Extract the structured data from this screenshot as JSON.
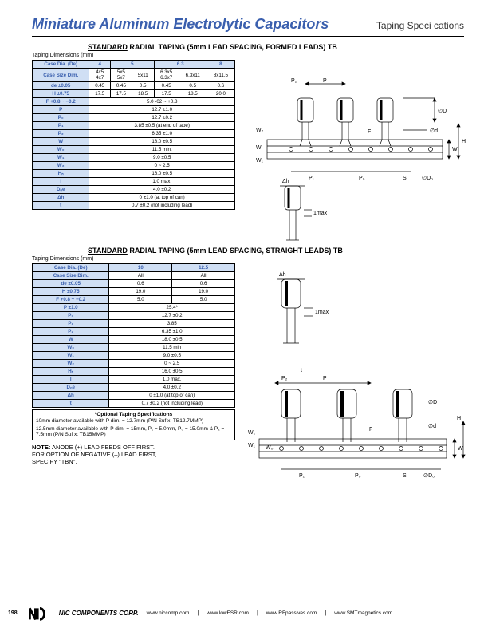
{
  "title": "Miniature Aluminum Electrolytic Capacitors",
  "subtitle": "Taping Speci  cations",
  "section1": {
    "title_prefix": "STANDARD",
    "title_rest": " RADIAL TAPING (5mm LEAD SPACING, FORMED LEADS) TB",
    "caption": "Taping Dimensions (mm)",
    "headers": [
      "Case Dia. (De)",
      "4",
      "5",
      "",
      "6.3",
      "",
      "8"
    ],
    "rows": [
      [
        "Case Size Dim.",
        "4x5\n4x7",
        "5x5\n5x7",
        "5x11",
        "6.3x5\n6.3x7",
        "6.3x11",
        "8x11.5"
      ],
      [
        "de ±0.05",
        "0.45",
        "0.45",
        "0.5",
        "0.45",
        "0.5",
        "0.6"
      ],
      [
        "H ±0.75",
        "17.5",
        "17.5",
        "18.5",
        "17.5",
        "18.5",
        "20.0"
      ],
      [
        "F +0.8 ~ −0.2",
        "5.0 -02 ~ +0.8",
        "",
        "",
        "",
        "",
        ""
      ],
      [
        "P",
        "12.7 ±1.0",
        "",
        "",
        "",
        "",
        ""
      ],
      [
        "P₀",
        "12.7 ±0.2",
        "",
        "",
        "",
        "",
        ""
      ],
      [
        "P₁",
        "3.85 ±0.5 (at end of tape)",
        "",
        "",
        "",
        "",
        ""
      ],
      [
        "P₂",
        "6.35 ±1.0",
        "",
        "",
        "",
        "",
        ""
      ],
      [
        "W",
        "18.0 ±0.5",
        "",
        "",
        "",
        "",
        ""
      ],
      [
        "W₀",
        "11.5 min.",
        "",
        "",
        "",
        "",
        ""
      ],
      [
        "W₁",
        "9.0 ±0.5",
        "",
        "",
        "",
        "",
        ""
      ],
      [
        "W₂",
        "0 ~ 2.5",
        "",
        "",
        "",
        "",
        ""
      ],
      [
        "Hₙ",
        "16.0 ±0.5",
        "",
        "",
        "",
        "",
        ""
      ],
      [
        "l",
        "1.0 max.",
        "",
        "",
        "",
        "",
        ""
      ],
      [
        "Dₒe",
        "4.0 ±0.2",
        "",
        "",
        "",
        "",
        ""
      ],
      [
        "Δh",
        "0 ±1.0 (at top of can)",
        "",
        "",
        "",
        "",
        ""
      ],
      [
        "t",
        "0.7 ±0.2 (not including lead)",
        "",
        "",
        "",
        "",
        ""
      ]
    ]
  },
  "section2": {
    "title_prefix": "STANDARD",
    "title_rest": " RADIAL TAPING (5mm LEAD SPACING, STRAIGHT LEADS) TB",
    "caption": "Taping Dimensions (mm)",
    "headers": [
      "Case Dia. (De)",
      "10",
      "12.5"
    ],
    "rows": [
      [
        "Case Size Dim.",
        "All",
        "All"
      ],
      [
        "de ±0.05",
        "0.6",
        "0.6"
      ],
      [
        "H ±0.75",
        "19.0",
        "19.0"
      ],
      [
        "F +0.8 ~ −0.2",
        "5.0",
        "5.0"
      ],
      [
        "P ±1.0",
        "25.4*",
        ""
      ],
      [
        "P₀",
        "12.7 ±0.2",
        ""
      ],
      [
        "P₁",
        "3.85",
        ""
      ],
      [
        "P₂",
        "6.35 ±1.0",
        ""
      ],
      [
        "W",
        "18.0 ±0.5",
        ""
      ],
      [
        "W₀",
        "11.5 min",
        ""
      ],
      [
        "W₁",
        "9.0 ±0.5",
        ""
      ],
      [
        "W₂",
        "0 ~ 2.5",
        ""
      ],
      [
        "Hₙ",
        "16.0 ±0.5",
        ""
      ],
      [
        "l",
        "1.0 max.",
        ""
      ],
      [
        "Dₒe",
        "4.0 ±0.2",
        ""
      ],
      [
        "Δh",
        "0 ±1.0 (at top of can)",
        ""
      ],
      [
        "t",
        "0.7 ±0.2 (not including lead)",
        ""
      ]
    ],
    "opt_title": "*Optional Taping Specifications",
    "opt1": "10mm diameter available with P dim. = 12.7mm (P/N Suf  x: TB12.7MMP)",
    "opt2": "12.5mm diameter available with P dim. = 15mm, P₁ = 5.0mm, P₀ = 15.0mm & P₂ = 7.5mm (P/N Suf  x: TB15MMP)"
  },
  "note": "NOTE: ANODE (+) LEAD FEEDS OFF FIRST. FOR OPTION OF NEGATIVE (–) LEAD FIRST, SPECIFY \"TBN\".",
  "footer": {
    "corp": "NIC COMPONENTS CORP.",
    "links": [
      "www.niccomp.com",
      "www.lowESR.com",
      "www.RFpassives.com",
      "www.SMTmagnetics.com"
    ],
    "page": "198"
  },
  "colors": {
    "brand": "#3a5fae",
    "header_bg": "#d0dff4"
  }
}
